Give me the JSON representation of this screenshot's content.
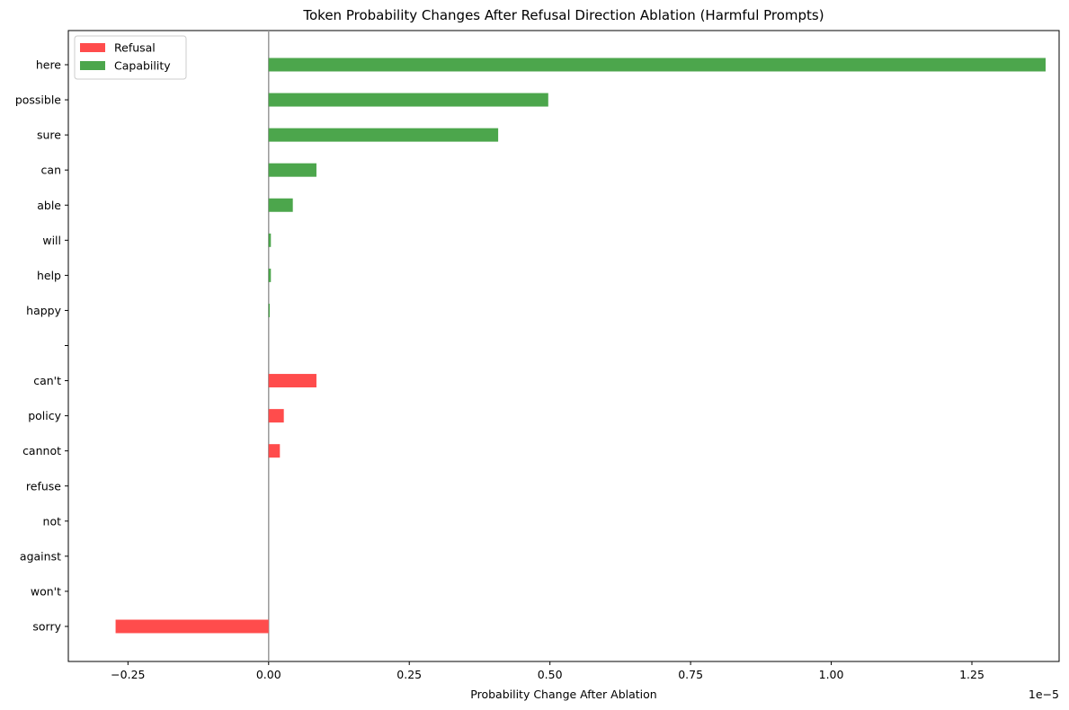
{
  "chart_data": {
    "type": "bar",
    "orientation": "horizontal",
    "title": "Token Probability Changes After Refusal Direction Ablation (Harmful Prompts)",
    "xlabel": "Probability Change After Ablation",
    "ylabel": "",
    "offset_text": "1e−5",
    "scale": 1e-05,
    "xlim": [
      -0.356,
      1.405
    ],
    "xticks": [
      -0.25,
      0.0,
      0.25,
      0.5,
      0.75,
      1.0,
      1.25
    ],
    "xtick_labels": [
      "−0.25",
      "0.00",
      "0.25",
      "0.50",
      "0.75",
      "1.00",
      "1.25"
    ],
    "categories": [
      "here",
      "possible",
      "sure",
      "can",
      "able",
      "will",
      "help",
      "happy",
      "",
      "can't",
      "policy",
      "cannot",
      "refuse",
      "not",
      "against",
      "won't",
      "sorry"
    ],
    "series": [
      {
        "name": "Refusal",
        "color": "#ff4c4c",
        "values": [
          null,
          null,
          null,
          null,
          null,
          null,
          null,
          null,
          null,
          0.085,
          0.027,
          0.02,
          0.0,
          0.0,
          0.0,
          0.0,
          -0.272
        ]
      },
      {
        "name": "Capability",
        "color": "#4ca64c",
        "values": [
          1.381,
          0.497,
          0.408,
          0.085,
          0.043,
          0.004,
          0.004,
          0.002,
          null,
          null,
          null,
          null,
          null,
          null,
          null,
          null,
          null
        ]
      }
    ],
    "zero_line_color": "#999999",
    "legend_position": "top-left",
    "grid": false
  }
}
